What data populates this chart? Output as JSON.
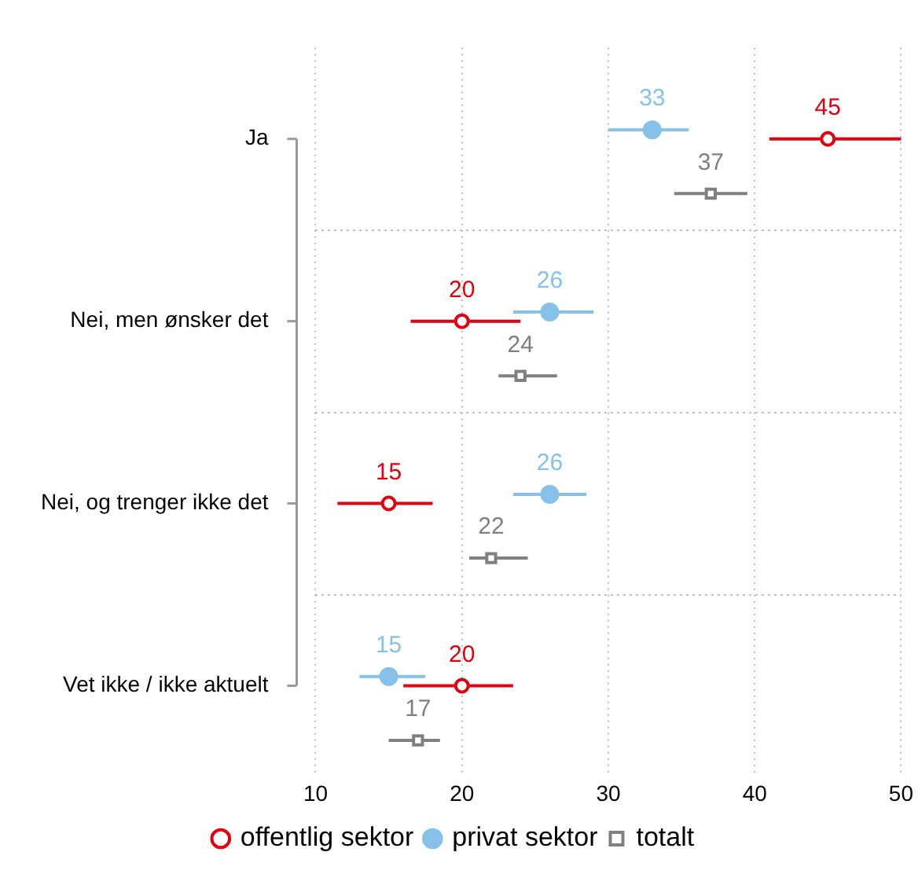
{
  "chart_data": {
    "type": "scatter",
    "orientation": "horizontal",
    "categories": [
      "Ja",
      "Nei, men ønsker det",
      "Nei, og trenger ikke det",
      "Vet ikke / ikke aktuelt"
    ],
    "series": [
      {
        "name": "offentlig sektor",
        "color": "#e3000f",
        "marker": "circle",
        "values": [
          45,
          20,
          15,
          20
        ],
        "errors": [
          [
            41,
            50
          ],
          [
            16.5,
            24
          ],
          [
            11.5,
            18
          ],
          [
            16,
            23.5
          ]
        ]
      },
      {
        "name": "privat sektor",
        "color": "#85c1e9",
        "marker": "circle",
        "values": [
          33,
          26,
          26,
          15
        ],
        "errors": [
          [
            30,
            35.5
          ],
          [
            23.5,
            29
          ],
          [
            23.5,
            28.5
          ],
          [
            13,
            17.5
          ]
        ]
      },
      {
        "name": "totalt",
        "color": "#808080",
        "marker": "square",
        "values": [
          37,
          24,
          22,
          17
        ],
        "errors": [
          [
            34.5,
            39.5
          ],
          [
            22.5,
            26.5
          ],
          [
            20.5,
            24.5
          ],
          [
            15,
            18.5
          ]
        ]
      }
    ],
    "xlim": [
      10,
      50
    ],
    "xticks": [
      10,
      20,
      30,
      40,
      50
    ],
    "grid": true,
    "legend": "bottom",
    "data_labels": true
  }
}
